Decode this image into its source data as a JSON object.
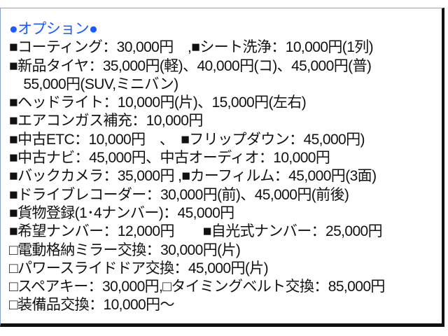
{
  "title": "●オプション●",
  "lines": [
    "■コーティング：30,000円　,■シート洗浄：10,000円(1列)",
    "■新品タイヤ：35,000円(軽)、40,000円(コ)、45,000円(普)",
    "　55,000円(SUV,ミニバン)",
    "■ヘッドライト：10,000円(片)、15,000円(左右)",
    "■エアコンガス補充：10,000円",
    "■中古ETC：10,000円　、　■フリップダウン：45,000円)",
    "■中古ナビ：45,000円、中古オーディオ：10,000円",
    "■バックカメラ：35,000円 ,■カーフィルム：45,000円(3面)",
    "■ドライブレコーダー：30,000円(前)、45,000円(前後)",
    "■貨物登録(1･4ナンバー)：45,000円",
    "■希望ナンバー：12,000円　　■自光式ナンバー：25,000円",
    "□電動格納ミラー交換：30,000円(片)",
    "□パワースライドドア交換：45,000円(片)",
    "□スペアキー：30,000円,□タイミングベルト交換：85,000円",
    "□装備品交換：10,000円～"
  ],
  "colors": {
    "title": "#1a5cff",
    "text": "#111111"
  }
}
